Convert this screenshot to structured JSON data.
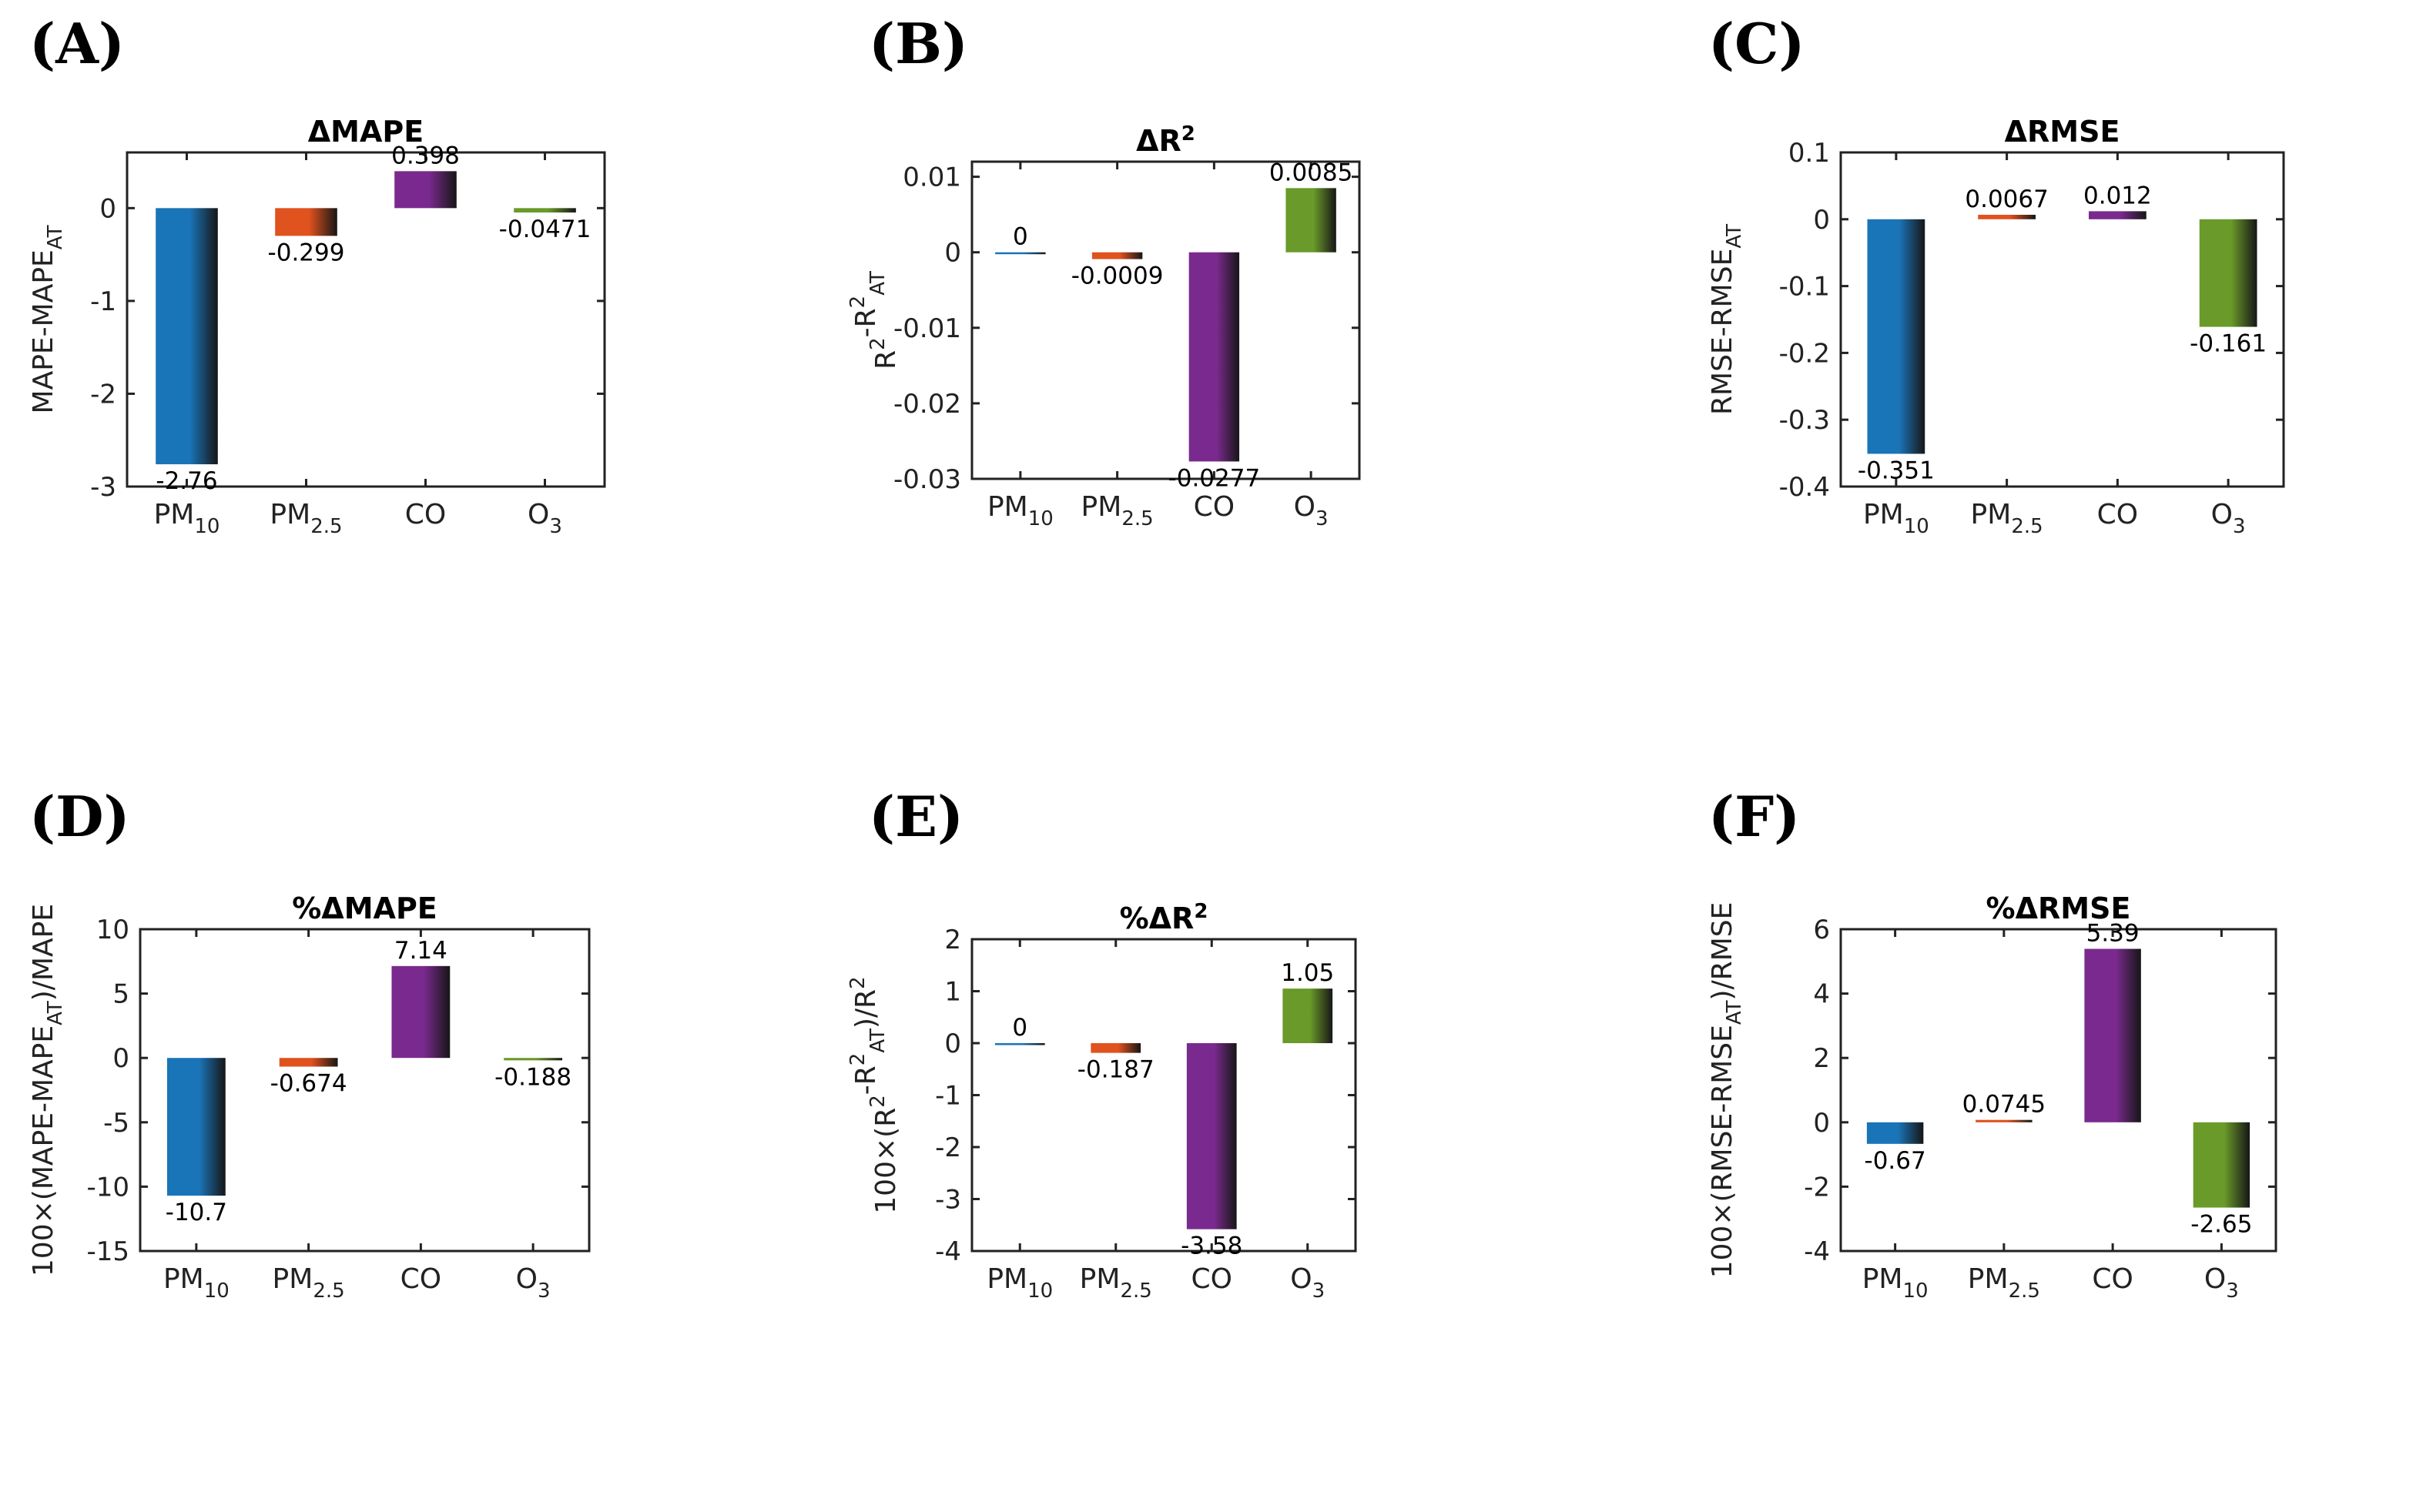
{
  "colors": {
    "pm10": "#1a74b8",
    "pm25": "#e0521e",
    "co": "#7a2a8e",
    "o3": "#6a9a2a"
  },
  "chart_data": [
    {
      "panel": "(A)",
      "type": "bar",
      "title": "ΔMAPE",
      "ylabel": {
        "main": "MAPE-MAPE",
        "sub": "AT"
      },
      "categories": [
        {
          "key": "pm10",
          "main": "PM",
          "sub": "10"
        },
        {
          "key": "pm25",
          "main": "PM",
          "sub": "2.5"
        },
        {
          "key": "co",
          "main": "CO",
          "sub": ""
        },
        {
          "key": "o3",
          "main": "O",
          "sub": "3"
        }
      ],
      "values": [
        -2.76,
        -0.299,
        0.398,
        -0.0471
      ],
      "labels": [
        "-2.76",
        "-0.299",
        "0.398",
        "-0.0471"
      ],
      "ylim": [
        -3,
        0.6
      ],
      "yticks": [
        -3,
        -2,
        -1,
        0
      ],
      "ytick_labels": [
        "-3",
        "-2",
        "-1",
        "0"
      ]
    },
    {
      "panel": "(B)",
      "type": "bar",
      "title": "ΔR",
      "title_sup": "2",
      "ylabel": {
        "main": "R",
        "sup": "2",
        "main2": "-R",
        "sub2": "AT",
        "sup2": "2"
      },
      "categories": [
        {
          "key": "pm10",
          "main": "PM",
          "sub": "10"
        },
        {
          "key": "pm25",
          "main": "PM",
          "sub": "2.5"
        },
        {
          "key": "co",
          "main": "CO",
          "sub": ""
        },
        {
          "key": "o3",
          "main": "O",
          "sub": "3"
        }
      ],
      "values": [
        0,
        -0.0009,
        -0.0277,
        0.0085
      ],
      "labels": [
        "0",
        "-0.0009",
        "-0.0277",
        "0.0085"
      ],
      "ylim": [
        -0.03,
        0.012
      ],
      "yticks": [
        -0.03,
        -0.02,
        -0.01,
        0,
        0.01
      ],
      "ytick_labels": [
        "-0.03",
        "-0.02",
        "-0.01",
        "0",
        "0.01"
      ]
    },
    {
      "panel": "(C)",
      "type": "bar",
      "title": "ΔRMSE",
      "ylabel": {
        "main": "RMSE-RMSE",
        "sub": "AT"
      },
      "categories": [
        {
          "key": "pm10",
          "main": "PM",
          "sub": "10"
        },
        {
          "key": "pm25",
          "main": "PM",
          "sub": "2.5"
        },
        {
          "key": "co",
          "main": "CO",
          "sub": ""
        },
        {
          "key": "o3",
          "main": "O",
          "sub": "3"
        }
      ],
      "values": [
        -0.351,
        0.0067,
        0.012,
        -0.161
      ],
      "labels": [
        "-0.351",
        "0.0067",
        "0.012",
        "-0.161"
      ],
      "ylim": [
        -0.4,
        0.1
      ],
      "yticks": [
        -0.4,
        -0.3,
        -0.2,
        -0.1,
        0,
        0.1
      ],
      "ytick_labels": [
        "-0.4",
        "-0.3",
        "-0.2",
        "-0.1",
        "0",
        "0.1"
      ]
    },
    {
      "panel": "(D)",
      "type": "bar",
      "title": "%ΔMAPE",
      "ylabel": {
        "main": "100×(MAPE-MAPE",
        "sub": "AT",
        "tail": ")/MAPE"
      },
      "categories": [
        {
          "key": "pm10",
          "main": "PM",
          "sub": "10"
        },
        {
          "key": "pm25",
          "main": "PM",
          "sub": "2.5"
        },
        {
          "key": "co",
          "main": "CO",
          "sub": ""
        },
        {
          "key": "o3",
          "main": "O",
          "sub": "3"
        }
      ],
      "values": [
        -10.7,
        -0.674,
        7.14,
        -0.188
      ],
      "labels": [
        "-10.7",
        "-0.674",
        "7.14",
        "-0.188"
      ],
      "ylim": [
        -15,
        10
      ],
      "yticks": [
        -15,
        -10,
        -5,
        0,
        5,
        10
      ],
      "ytick_labels": [
        "-15",
        "-10",
        "-5",
        "0",
        "5",
        "10"
      ]
    },
    {
      "panel": "(E)",
      "type": "bar",
      "title": "%ΔR",
      "title_sup": "2",
      "ylabel": {
        "main": "100×(R",
        "sup": "2",
        "main2": "-R",
        "sub2": "AT",
        "sup2": "2",
        "tail": ")/R",
        "sup3": "2"
      },
      "categories": [
        {
          "key": "pm10",
          "main": "PM",
          "sub": "10"
        },
        {
          "key": "pm25",
          "main": "PM",
          "sub": "2.5"
        },
        {
          "key": "co",
          "main": "CO",
          "sub": ""
        },
        {
          "key": "o3",
          "main": "O",
          "sub": "3"
        }
      ],
      "values": [
        0,
        -0.187,
        -3.58,
        1.05
      ],
      "labels": [
        "0",
        "-0.187",
        "-3.58",
        "1.05"
      ],
      "ylim": [
        -4,
        2
      ],
      "yticks": [
        -4,
        -3,
        -2,
        -1,
        0,
        1,
        2
      ],
      "ytick_labels": [
        "-4",
        "-3",
        "-2",
        "-1",
        "0",
        "1",
        "2"
      ]
    },
    {
      "panel": "(F)",
      "type": "bar",
      "title": "%ΔRMSE",
      "ylabel": {
        "main": "100×(RMSE-RMSE",
        "sub": "AT",
        "tail": ")/RMSE"
      },
      "categories": [
        {
          "key": "pm10",
          "main": "PM",
          "sub": "10"
        },
        {
          "key": "pm25",
          "main": "PM",
          "sub": "2.5"
        },
        {
          "key": "co",
          "main": "CO",
          "sub": ""
        },
        {
          "key": "o3",
          "main": "O",
          "sub": "3"
        }
      ],
      "values": [
        -0.67,
        0.0745,
        5.39,
        -2.65
      ],
      "labels": [
        "-0.67",
        "0.0745",
        "5.39",
        "-2.65"
      ],
      "ylim": [
        -4,
        6
      ],
      "yticks": [
        -4,
        -2,
        0,
        2,
        4,
        6
      ],
      "ytick_labels": [
        "-4",
        "-2",
        "0",
        "2",
        "4",
        "6"
      ]
    }
  ]
}
